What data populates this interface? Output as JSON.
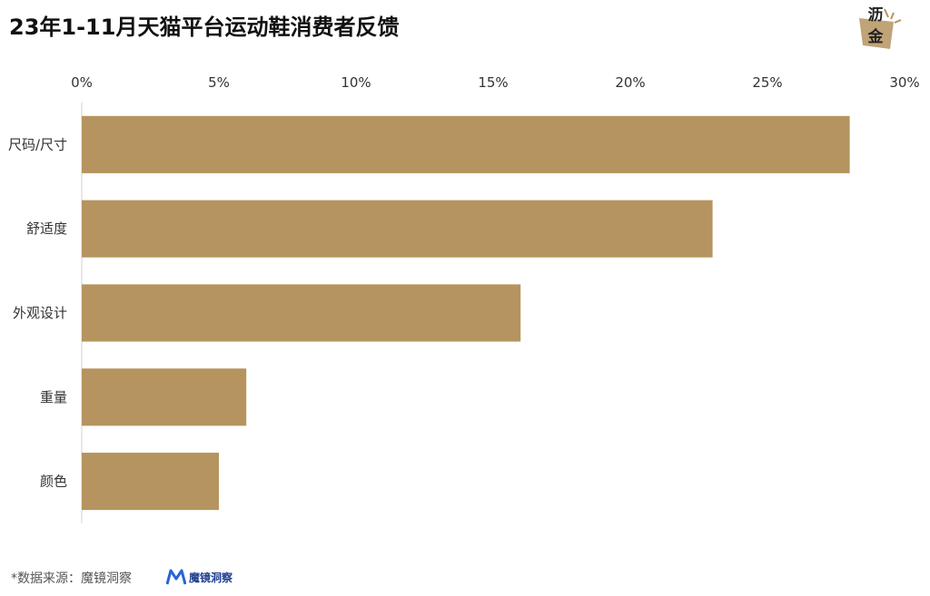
{
  "title": "23年1-11月天猫平台运动鞋消费者反馈",
  "logo": {
    "line1": "沥",
    "line2": "金",
    "accent": "#b5945f"
  },
  "footer": {
    "source": "*数据来源：魔镜洞察",
    "brand": "魔镜洞察"
  },
  "chart_data": {
    "type": "bar",
    "orientation": "horizontal",
    "title": "23年1-11月天猫平台运动鞋消费者反馈",
    "categories": [
      "尺码/尺寸",
      "舒适度",
      "外观设计",
      "重量",
      "颜色"
    ],
    "values": [
      28,
      23,
      16,
      6,
      5
    ],
    "unit": "%",
    "xlim": [
      0,
      30
    ],
    "xticks": [
      "0%",
      "5%",
      "10%",
      "15%",
      "20%",
      "25%",
      "30%"
    ],
    "xtick_values": [
      0,
      5,
      10,
      15,
      20,
      25,
      30
    ],
    "xaxis_position": "top",
    "grid": false,
    "bar_color": "#b5945f"
  }
}
